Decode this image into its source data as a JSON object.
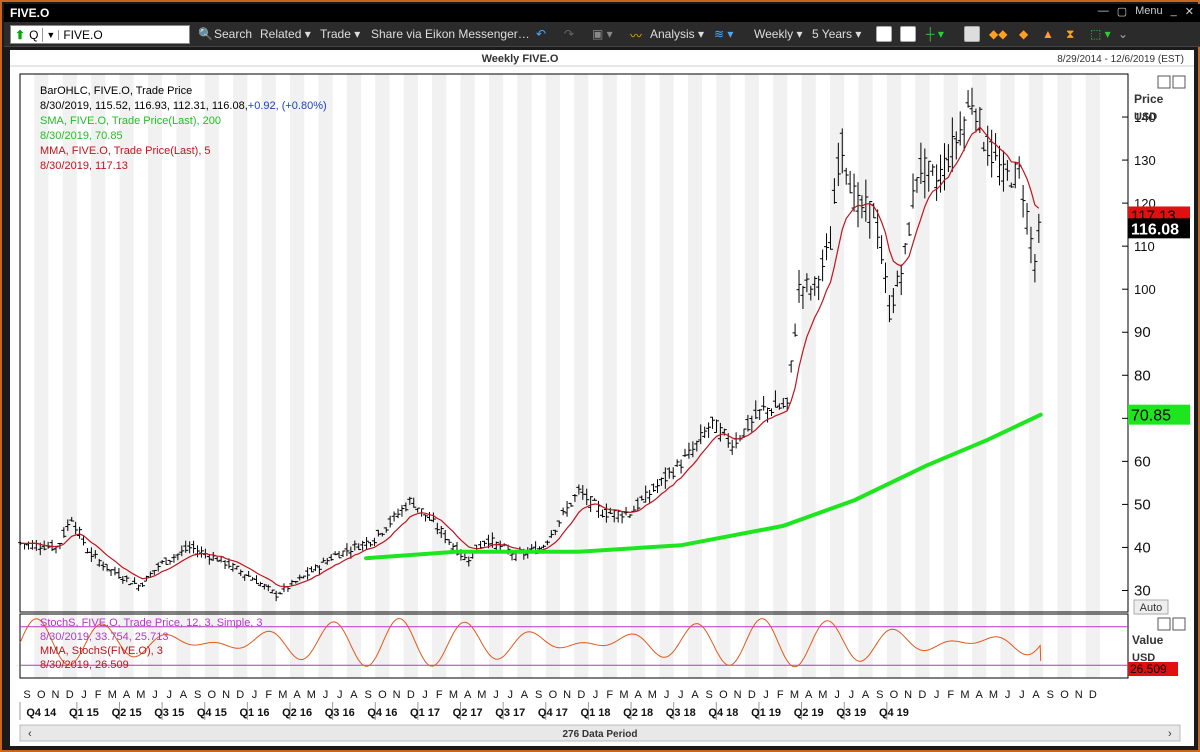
{
  "window": {
    "title": "FIVE.O",
    "menu_label": "Menu"
  },
  "toolbar": {
    "ric_prefix": "Q",
    "ric_value": "FIVE.O",
    "search_label": "Search",
    "related_label": "Related ▾",
    "trade_label": "Trade ▾",
    "share_label": "Share via Eikon Messenger…",
    "analysis_label": "Analysis ▾",
    "interval_label": "Weekly ▾",
    "range_label": "5 Years ▾"
  },
  "chart_header": {
    "title": "Weekly FIVE.O",
    "date_range": "8/29/2014 - 12/6/2019 (EST)"
  },
  "legend": {
    "l1": "BarOHLC, FIVE.O, Trade Price",
    "l2a": "8/30/2019, 115.52, 116.93, 112.31, 116.08,",
    "l2b": "+0.92, (+0.80%)",
    "l3": "SMA, FIVE.O, Trade Price(Last),  200",
    "l4": "8/30/2019, 70.85",
    "l5": "MMA, FIVE.O, Trade Price(Last),  5",
    "l6": "8/30/2019, 117.13"
  },
  "lower_legend": {
    "l1": "StochS, FIVE.O, Trade Price,  12, 3, Simple,  3",
    "l2": "8/30/2019, 33.754, 25.713",
    "l3": "MMA, StochS(FIVE.O),  3",
    "l4": "8/30/2019, 26.509"
  },
  "price_axis": {
    "title": "Price",
    "unit": "USD",
    "auto_label": "Auto"
  },
  "value_axis": {
    "title": "Value",
    "unit": "USD"
  },
  "badges": {
    "mma": "117.13",
    "last": "116.08",
    "sma": "70.85",
    "stoch": "26.509"
  },
  "footer": {
    "data_period": "276 Data Period"
  },
  "colors": {
    "mma": "#c0141e",
    "sma": "#1ee61e",
    "stoch": "#e05a1e",
    "stoch_legend": "#b436c8",
    "badge_red": "#e01010",
    "badge_green": "#1ee61e"
  },
  "chart_data": {
    "type": "ohlc",
    "x_axis": {
      "months": [
        "S",
        "O",
        "N",
        "D",
        "J",
        "F",
        "M",
        "A",
        "M",
        "J",
        "J",
        "A",
        "S",
        "O",
        "N",
        "D",
        "J",
        "F",
        "M",
        "A",
        "M",
        "J",
        "J",
        "A",
        "S",
        "O",
        "N",
        "D",
        "J",
        "F",
        "M",
        "A",
        "M",
        "J",
        "J",
        "A",
        "S",
        "O",
        "N",
        "D",
        "J",
        "F",
        "M",
        "A",
        "M",
        "J",
        "J",
        "A",
        "S",
        "O",
        "N",
        "D",
        "J",
        "F",
        "M",
        "A",
        "M",
        "J",
        "J",
        "A",
        "S",
        "O",
        "N",
        "D",
        "J",
        "F",
        "M",
        "A",
        "M",
        "J",
        "J",
        "A",
        "S",
        "O",
        "N",
        "D"
      ],
      "quarters": [
        "Q4 14",
        "Q1 15",
        "Q2 15",
        "Q3 15",
        "Q4 15",
        "Q1 16",
        "Q2 16",
        "Q3 16",
        "Q4 16",
        "Q1 17",
        "Q2 17",
        "Q3 17",
        "Q4 17",
        "Q1 18",
        "Q2 18",
        "Q3 18",
        "Q4 18",
        "Q1 19",
        "Q2 19",
        "Q3 19",
        "Q4 19"
      ]
    },
    "price_axis": {
      "ticks": [
        30,
        40,
        50,
        60,
        70,
        80,
        90,
        100,
        110,
        120,
        130,
        140
      ],
      "ylim": [
        25,
        150
      ]
    },
    "value_axis": {
      "lines": [
        80,
        20
      ]
    },
    "series": [
      {
        "name": "BarOHLC",
        "close_anchors": [
          [
            2014.67,
            41
          ],
          [
            2014.85,
            40
          ],
          [
            2014.92,
            47
          ],
          [
            2015.0,
            39
          ],
          [
            2015.1,
            35
          ],
          [
            2015.25,
            31
          ],
          [
            2015.35,
            36
          ],
          [
            2015.5,
            40
          ],
          [
            2015.65,
            37
          ],
          [
            2015.8,
            33
          ],
          [
            2015.92,
            29
          ],
          [
            2016.05,
            33
          ],
          [
            2016.2,
            38
          ],
          [
            2016.4,
            42
          ],
          [
            2016.58,
            51
          ],
          [
            2016.72,
            44
          ],
          [
            2016.85,
            37
          ],
          [
            2016.95,
            42
          ],
          [
            2017.1,
            38
          ],
          [
            2017.22,
            40
          ],
          [
            2017.4,
            53
          ],
          [
            2017.52,
            48
          ],
          [
            2017.65,
            48
          ],
          [
            2017.8,
            55
          ],
          [
            2017.95,
            62
          ],
          [
            2018.05,
            69
          ],
          [
            2018.15,
            64
          ],
          [
            2018.3,
            72
          ],
          [
            2018.42,
            73
          ],
          [
            2018.48,
            101
          ],
          [
            2018.55,
            100
          ],
          [
            2018.63,
            110
          ],
          [
            2018.68,
            135
          ],
          [
            2018.76,
            119
          ],
          [
            2018.85,
            118
          ],
          [
            2018.92,
            95
          ],
          [
            2018.99,
            106
          ],
          [
            2019.06,
            129
          ],
          [
            2019.15,
            125
          ],
          [
            2019.25,
            135
          ],
          [
            2019.33,
            145
          ],
          [
            2019.38,
            135
          ],
          [
            2019.48,
            126
          ],
          [
            2019.56,
            127
          ],
          [
            2019.63,
            106
          ],
          [
            2019.66,
            116
          ]
        ]
      },
      {
        "name": "MMA 5",
        "last": 117.13
      },
      {
        "name": "SMA 200",
        "points": [
          [
            2016.36,
            37.5
          ],
          [
            2016.8,
            39
          ],
          [
            2017.4,
            39
          ],
          [
            2017.9,
            40.5
          ],
          [
            2018.4,
            45
          ],
          [
            2018.75,
            51
          ],
          [
            2019.1,
            59
          ],
          [
            2019.4,
            65
          ],
          [
            2019.66,
            70.85
          ]
        ]
      },
      {
        "name": "StochS",
        "values": [
          33.754,
          25.713
        ]
      },
      {
        "name": "MMA StochS",
        "last": 26.509
      }
    ]
  }
}
